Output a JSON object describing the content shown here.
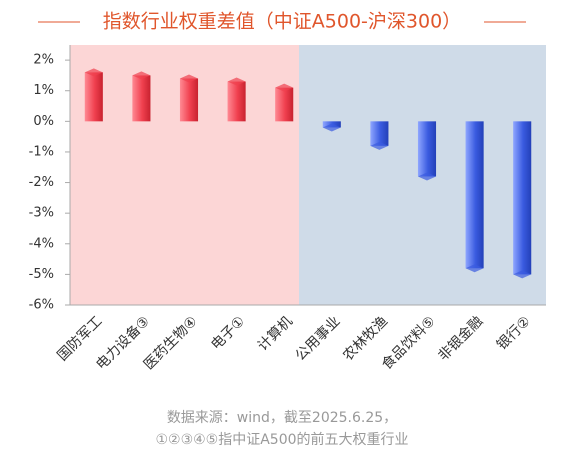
{
  "chart_data": {
    "type": "bar",
    "title": "指数行业权重差值（中证A500-沪深300）",
    "categories": [
      "国防军工",
      "电力设备③",
      "医药生物④",
      "电子①",
      "计算机",
      "公用事业",
      "农林牧渔",
      "食品饮料⑤",
      "非银金融",
      "银行②"
    ],
    "values": [
      1.6,
      1.5,
      1.4,
      1.3,
      1.1,
      -0.2,
      -0.8,
      -1.8,
      -4.8,
      -5.0
    ],
    "color_positive": "#f0404f",
    "color_negative": "#3a5be0",
    "ylim": [
      -6,
      2.2
    ],
    "yticks": [
      {
        "value": 2,
        "label": "2%"
      },
      {
        "value": 1,
        "label": "1%"
      },
      {
        "value": 0,
        "label": "0%"
      },
      {
        "value": -1,
        "label": "-1%"
      },
      {
        "value": -2,
        "label": "-2%"
      },
      {
        "value": -3,
        "label": "-3%"
      },
      {
        "value": -4,
        "label": "-4%"
      },
      {
        "value": -5,
        "label": "-5%"
      },
      {
        "value": -6,
        "label": "-6%"
      }
    ],
    "notes": [
      "数据来源：wind，截至2025.6.25，",
      "①②③④⑤指中证A500的前五大权重行业"
    ]
  }
}
